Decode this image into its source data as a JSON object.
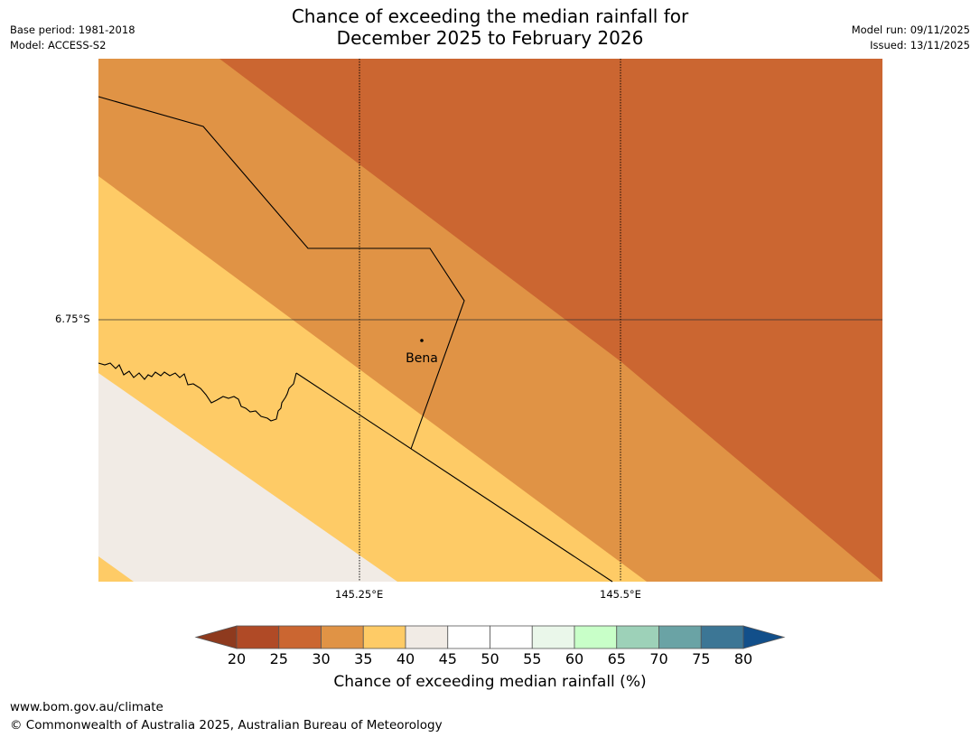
{
  "title": {
    "line1": "Chance of exceeding the median rainfall for",
    "line2": "December 2025 to February 2026"
  },
  "meta_left": {
    "base_period": "Base period: 1981-2018",
    "model": "Model: ACCESS-S2"
  },
  "meta_right": {
    "model_run": "Model run: 09/11/2025",
    "issued": "Issued: 13/11/2025"
  },
  "map": {
    "latitude_label": "6.75°S",
    "longitude_labels": [
      "145.25°E",
      "145.5°E"
    ],
    "place": {
      "name": "Bena"
    }
  },
  "legend": {
    "title": "Chance of exceeding median rainfall (%)",
    "ticks": [
      "20",
      "25",
      "30",
      "35",
      "40",
      "45",
      "50",
      "55",
      "60",
      "65",
      "70",
      "75",
      "80"
    ],
    "colors": [
      "#8e3a1e",
      "#b04a26",
      "#cb6631",
      "#e09345",
      "#fecb66",
      "#f1ebe5",
      "#ffffff",
      "#ffffff",
      "#eaf7ea",
      "#c8ffc8",
      "#9dd1b8",
      "#6aa3a5",
      "#3c7695",
      "#124f8a"
    ]
  },
  "map_colors": {
    "zone_25_30": "#cb6631",
    "zone_30_35": "#e09345",
    "zone_35_40": "#fecb66",
    "zone_40_45": "#f1ebe5"
  },
  "footer": {
    "url": "www.bom.gov.au/climate",
    "copyright": "© Commonwealth of Australia 2025, Australian Bureau of Meteorology"
  }
}
